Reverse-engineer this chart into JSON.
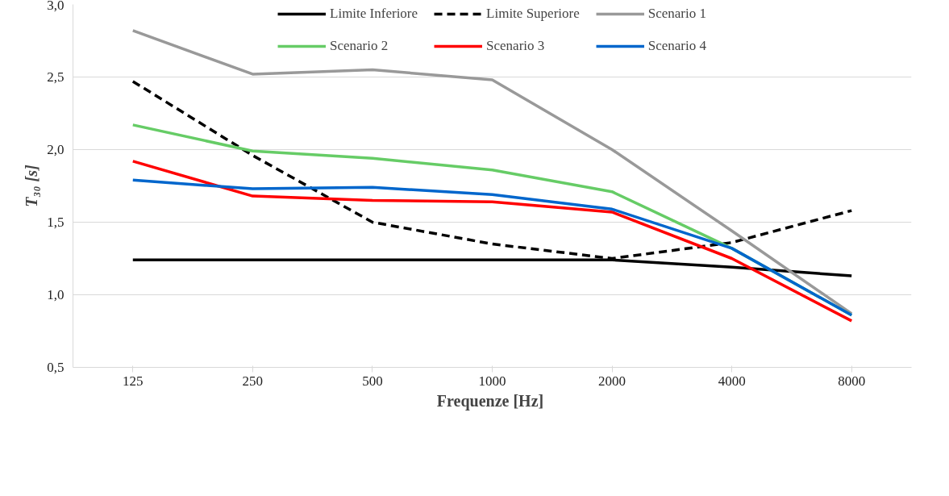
{
  "chart_data": {
    "type": "line",
    "xlabel": "Frequenze  [Hz]",
    "ylabel": "T₃₀ [s]",
    "categories": [
      "125",
      "250",
      "500",
      "1000",
      "2000",
      "4000",
      "8000"
    ],
    "series": [
      {
        "name": "Limite Inferiore",
        "color": "#000000",
        "values": [
          1.24,
          1.24,
          1.24,
          1.24,
          1.24,
          1.19,
          1.13
        ]
      },
      {
        "name": "Limite Superiore",
        "color": "#000000",
        "line_style": "dashed",
        "values": [
          2.47,
          1.96,
          1.5,
          1.35,
          1.25,
          1.36,
          1.58
        ]
      },
      {
        "name": "Scenario 1",
        "color": "#999999",
        "values": [
          2.82,
          2.52,
          2.55,
          2.48,
          2.0,
          1.44,
          0.87
        ]
      },
      {
        "name": "Scenario 2",
        "color": "#66cc66",
        "values": [
          2.17,
          1.99,
          1.94,
          1.86,
          1.71,
          1.32,
          0.86
        ]
      },
      {
        "name": "Scenario 3",
        "color": "#ff0000",
        "values": [
          1.92,
          1.68,
          1.65,
          1.64,
          1.57,
          1.25,
          0.82
        ]
      },
      {
        "name": "Scenario 4",
        "color": "#0066cc",
        "values": [
          1.79,
          1.73,
          1.74,
          1.69,
          1.59,
          1.32,
          0.86
        ]
      }
    ],
    "ylim": [
      0.5,
      3.0
    ],
    "yticks": [
      {
        "value": 0.5,
        "label": "0,5"
      },
      {
        "value": 1.0,
        "label": "1,0"
      },
      {
        "value": 1.5,
        "label": "1,5"
      },
      {
        "value": 2.0,
        "label": "2,0"
      },
      {
        "value": 2.5,
        "label": "2,5"
      },
      {
        "value": 3.0,
        "label": "3,0"
      }
    ],
    "grid": "y",
    "legend": "top",
    "line_style": "solid"
  }
}
